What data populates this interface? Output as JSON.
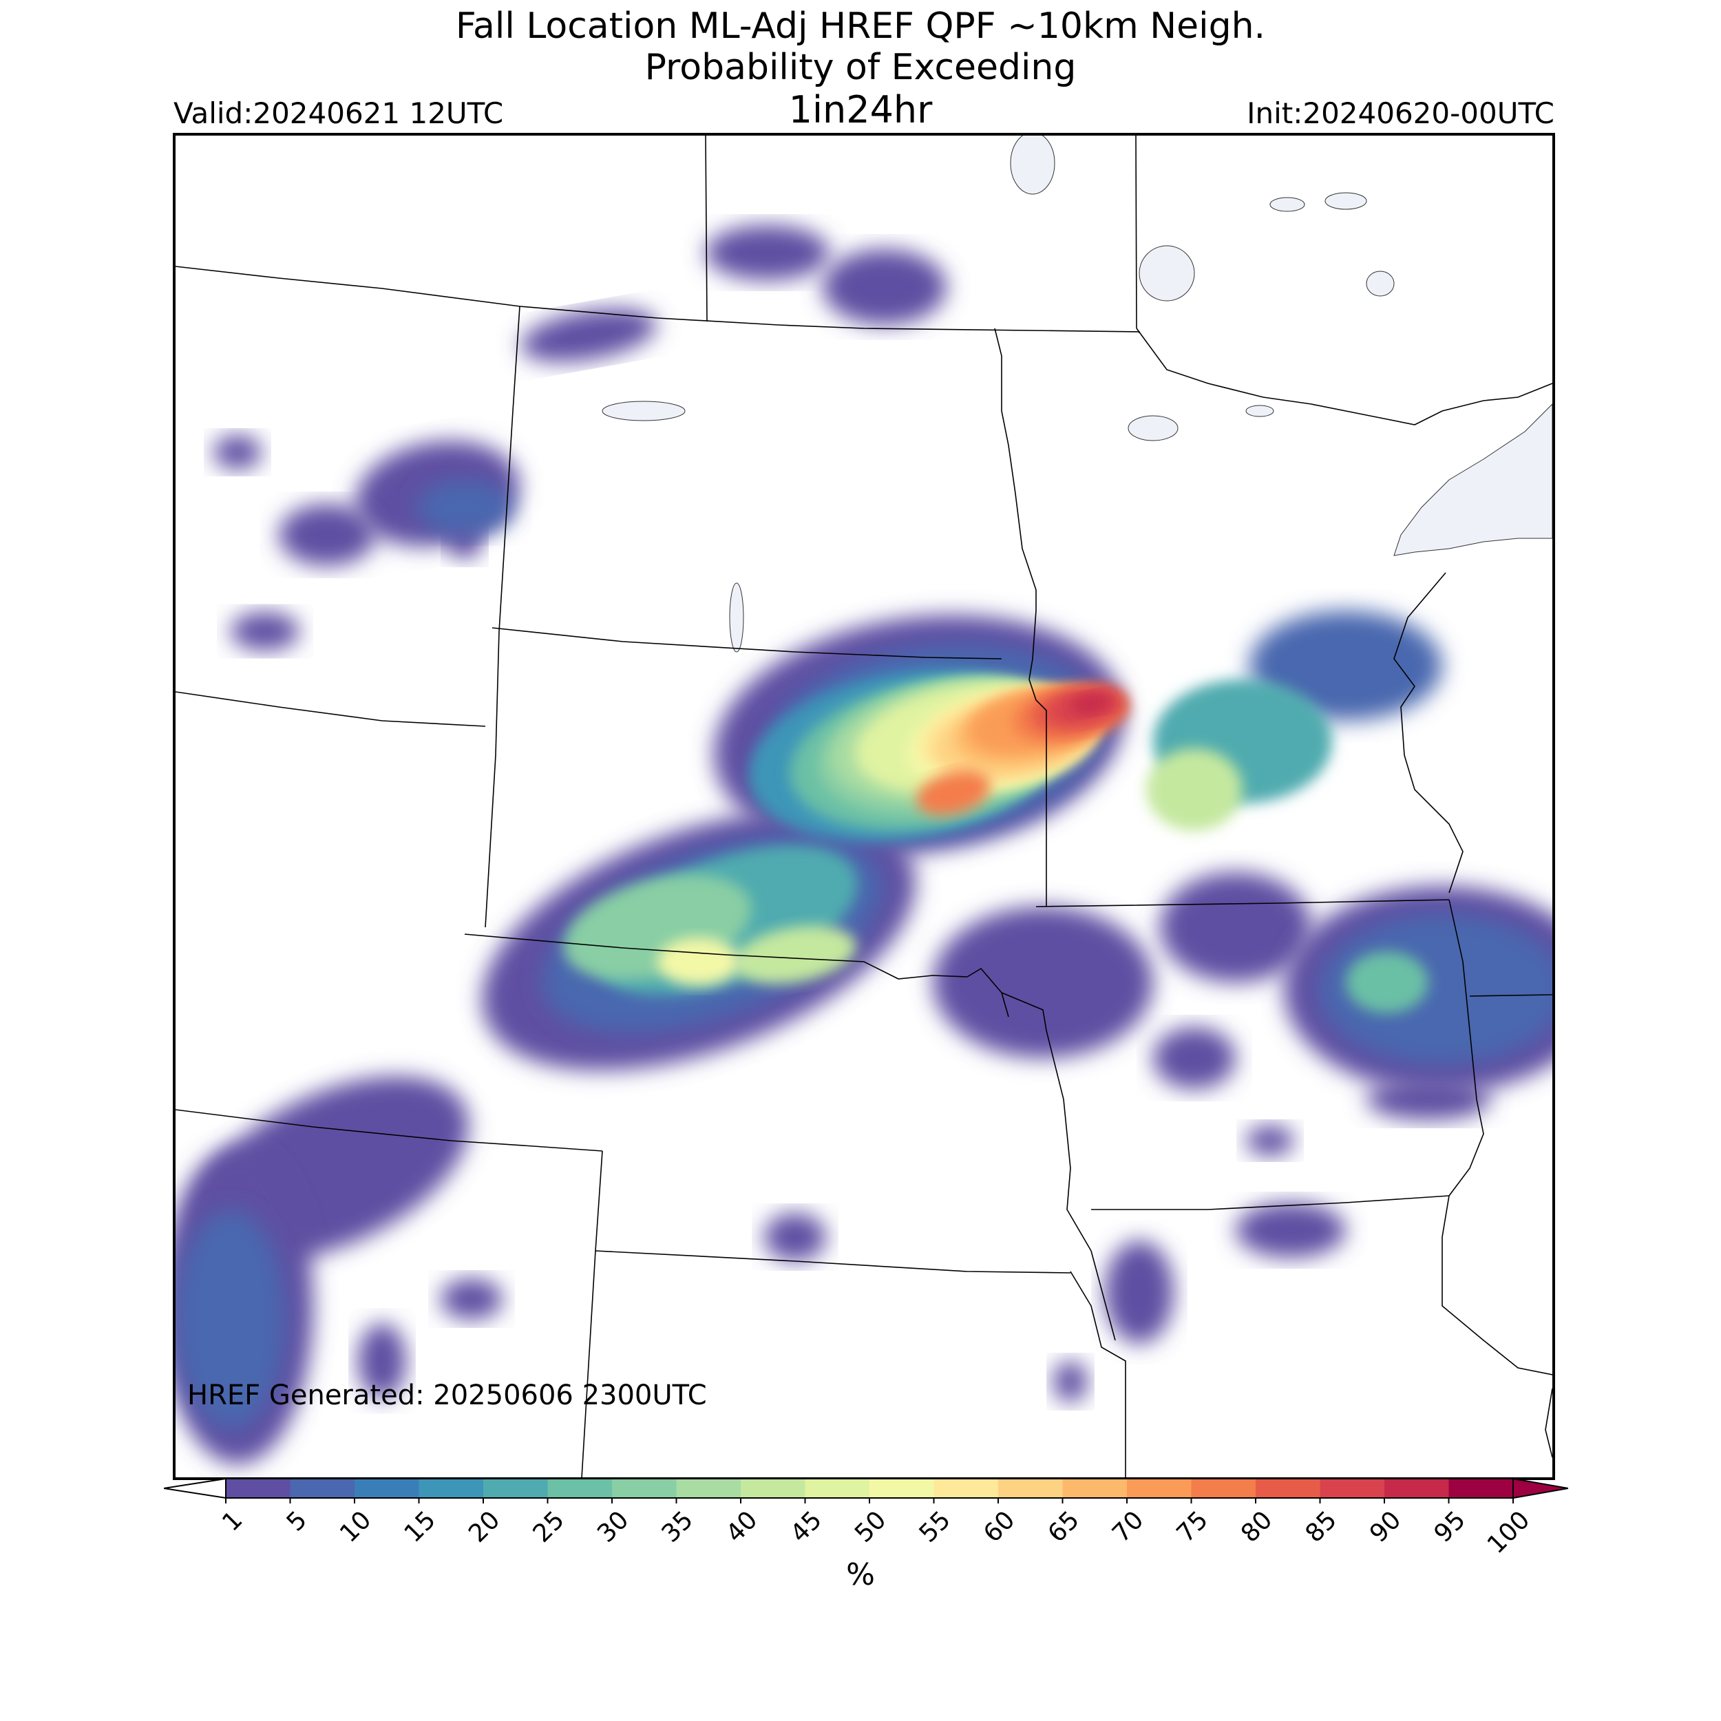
{
  "title": {
    "line1": "Fall Location ML-Adj HREF QPF ~10km Neigh.",
    "line2": "Probability of Exceeding",
    "line3": "1in24hr"
  },
  "valid_label": "Valid:20240621 12UTC",
  "init_label": "Init:20240620-00UTC",
  "generated_label": "HREF Generated: 20250606 2300UTC",
  "colorbar": {
    "unit": "%",
    "ticks": [
      "1",
      "5",
      "10",
      "15",
      "20",
      "25",
      "30",
      "35",
      "40",
      "45",
      "50",
      "55",
      "60",
      "65",
      "70",
      "75",
      "80",
      "85",
      "90",
      "95",
      "100"
    ],
    "colors": [
      "#5e4fa2",
      "#4a67af",
      "#3a7eb8",
      "#3d95b8",
      "#4fabaf",
      "#6bc0a5",
      "#89cea4",
      "#a8dca2",
      "#c5e89f",
      "#e0f3a1",
      "#f3f8a7",
      "#fee89a",
      "#fed283",
      "#fdb96b",
      "#fa9c57",
      "#f47d4c",
      "#e75c48",
      "#d8434e",
      "#c7294b",
      "#9e0142"
    ],
    "under_color": "#ffffff",
    "over_color": "#9e0142"
  },
  "map": {
    "water_color": "#eef2f8",
    "border_color": "#000000"
  }
}
